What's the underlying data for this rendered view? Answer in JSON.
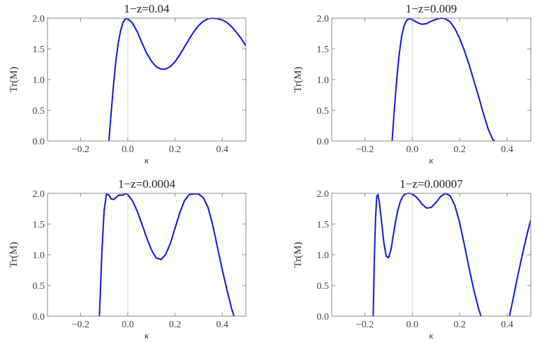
{
  "chart_data": [
    {
      "type": "line",
      "title": "1−z=0.04",
      "xlabel": "κ",
      "ylabel": "Tr(M)",
      "xlim": [
        -0.34,
        0.5
      ],
      "ylim": [
        0,
        2
      ],
      "xticks": [
        -0.2,
        0.0,
        0.2,
        0.4
      ],
      "xtick_labels": [
        "−0.2",
        "0.0",
        "0.2",
        "0.4"
      ],
      "yticks": [
        0,
        0.5,
        1,
        1.5,
        2
      ],
      "ytick_labels": [
        "0.0",
        "0.5",
        "1.0",
        "1.5",
        "2.0"
      ],
      "series": [
        {
          "color": "#1515d6",
          "x": [
            -0.08,
            -0.07,
            -0.06,
            -0.05,
            -0.04,
            -0.03,
            -0.02,
            -0.01,
            0.0,
            0.02,
            0.04,
            0.06,
            0.08,
            0.1,
            0.12,
            0.14,
            0.16,
            0.18,
            0.2,
            0.22,
            0.24,
            0.26,
            0.28,
            0.3,
            0.32,
            0.34,
            0.36,
            0.38,
            0.4,
            0.42,
            0.44,
            0.46,
            0.48,
            0.5
          ],
          "y": [
            0.0,
            0.48,
            0.93,
            1.31,
            1.6,
            1.8,
            1.93,
            1.99,
            1.99,
            1.92,
            1.78,
            1.6,
            1.43,
            1.3,
            1.21,
            1.17,
            1.17,
            1.21,
            1.29,
            1.4,
            1.53,
            1.66,
            1.78,
            1.88,
            1.95,
            1.99,
            2.0,
            1.99,
            1.97,
            1.93,
            1.86,
            1.77,
            1.67,
            1.55
          ]
        }
      ]
    },
    {
      "type": "line",
      "title": "1−z=0.009",
      "xlabel": "κ",
      "ylabel": "Tr(M)",
      "xlim": [
        -0.34,
        0.5
      ],
      "ylim": [
        0,
        2
      ],
      "xticks": [
        -0.2,
        0.0,
        0.2,
        0.4
      ],
      "xtick_labels": [
        "−0.2",
        "0.0",
        "0.2",
        "0.4"
      ],
      "yticks": [
        0,
        0.5,
        1,
        1.5,
        2
      ],
      "ytick_labels": [
        "0.0",
        "0.5",
        "1.0",
        "1.5",
        "2.0"
      ],
      "series": [
        {
          "color": "#1515d6",
          "x": [
            -0.085,
            -0.075,
            -0.065,
            -0.055,
            -0.045,
            -0.035,
            -0.025,
            -0.015,
            0.0,
            0.02,
            0.04,
            0.06,
            0.08,
            0.1,
            0.12,
            0.14,
            0.16,
            0.18,
            0.2,
            0.22,
            0.24,
            0.26,
            0.28,
            0.3,
            0.32,
            0.34,
            0.35
          ],
          "y": [
            0.0,
            0.55,
            1.03,
            1.42,
            1.7,
            1.87,
            1.96,
            1.99,
            1.98,
            1.93,
            1.9,
            1.91,
            1.95,
            1.98,
            2.0,
            1.99,
            1.94,
            1.83,
            1.67,
            1.47,
            1.24,
            0.98,
            0.72,
            0.45,
            0.2,
            0.02,
            0.0
          ]
        }
      ]
    },
    {
      "type": "line",
      "title": "1−z=0.0004",
      "xlabel": "κ",
      "ylabel": "Tr(M)",
      "xlim": [
        -0.34,
        0.5
      ],
      "ylim": [
        0,
        2
      ],
      "xticks": [
        -0.2,
        0.0,
        0.2,
        0.4
      ],
      "xtick_labels": [
        "−0.2",
        "0.0",
        "0.2",
        "0.4"
      ],
      "yticks": [
        0,
        0.5,
        1,
        1.5,
        2
      ],
      "ytick_labels": [
        "0.0",
        "0.5",
        "1.0",
        "1.5",
        "2.0"
      ],
      "series": [
        {
          "color": "#1515d6",
          "x": [
            -0.12,
            -0.11,
            -0.1,
            -0.09,
            -0.08,
            -0.07,
            -0.06,
            -0.05,
            -0.04,
            -0.03,
            -0.02,
            -0.01,
            0.0,
            0.02,
            0.04,
            0.06,
            0.08,
            0.1,
            0.12,
            0.14,
            0.16,
            0.18,
            0.2,
            0.22,
            0.24,
            0.26,
            0.28,
            0.3,
            0.32,
            0.34,
            0.36,
            0.38,
            0.4,
            0.42,
            0.44,
            0.45
          ],
          "y": [
            0.0,
            1.02,
            1.72,
            1.99,
            1.97,
            1.91,
            1.9,
            1.93,
            1.97,
            1.97,
            1.97,
            2.0,
            1.98,
            1.88,
            1.71,
            1.5,
            1.28,
            1.08,
            0.95,
            0.92,
            1.0,
            1.18,
            1.43,
            1.68,
            1.88,
            1.98,
            1.99,
            1.99,
            1.93,
            1.77,
            1.48,
            1.12,
            0.76,
            0.43,
            0.12,
            0.0
          ]
        }
      ]
    },
    {
      "type": "line",
      "title": "1−z=0.00007",
      "xlabel": "κ",
      "ylabel": "Tr(M)",
      "xlim": [
        -0.34,
        0.5
      ],
      "ylim": [
        0,
        2
      ],
      "xticks": [
        -0.2,
        0.0,
        0.2,
        0.4
      ],
      "xtick_labels": [
        "−0.2",
        "0.0",
        "0.2",
        "0.4"
      ],
      "yticks": [
        0,
        0.5,
        1,
        1.5,
        2
      ],
      "ytick_labels": [
        "0.0",
        "0.5",
        "1.0",
        "1.5",
        "2.0"
      ],
      "series": [
        {
          "color": "#1515d6",
          "x": [
            -0.165,
            -0.16,
            -0.155,
            -0.15,
            -0.145,
            -0.14,
            -0.13,
            -0.12,
            -0.11,
            -0.1,
            -0.09,
            -0.08,
            -0.07,
            -0.06,
            -0.05,
            -0.04,
            -0.03,
            -0.02,
            -0.01,
            0.0,
            0.02,
            0.04,
            0.06,
            0.08,
            0.1,
            0.12,
            0.14,
            0.16,
            0.18,
            0.2,
            0.22,
            0.24,
            0.26,
            0.28,
            0.29
          ],
          "y": [
            0.0,
            0.95,
            1.6,
            1.95,
            1.98,
            1.88,
            1.55,
            1.2,
            0.98,
            0.95,
            1.08,
            1.32,
            1.55,
            1.74,
            1.87,
            1.95,
            1.99,
            2.0,
            2.0,
            1.99,
            1.93,
            1.83,
            1.76,
            1.77,
            1.85,
            1.95,
            2.0,
            1.96,
            1.8,
            1.52,
            1.16,
            0.78,
            0.42,
            0.12,
            0.0
          ]
        },
        {
          "color": "#1515d6",
          "x": [
            0.41,
            0.42,
            0.43,
            0.44,
            0.45,
            0.46,
            0.47,
            0.48,
            0.49,
            0.5
          ],
          "y": [
            0.0,
            0.18,
            0.37,
            0.56,
            0.74,
            0.92,
            1.09,
            1.26,
            1.42,
            1.56
          ]
        }
      ]
    }
  ]
}
